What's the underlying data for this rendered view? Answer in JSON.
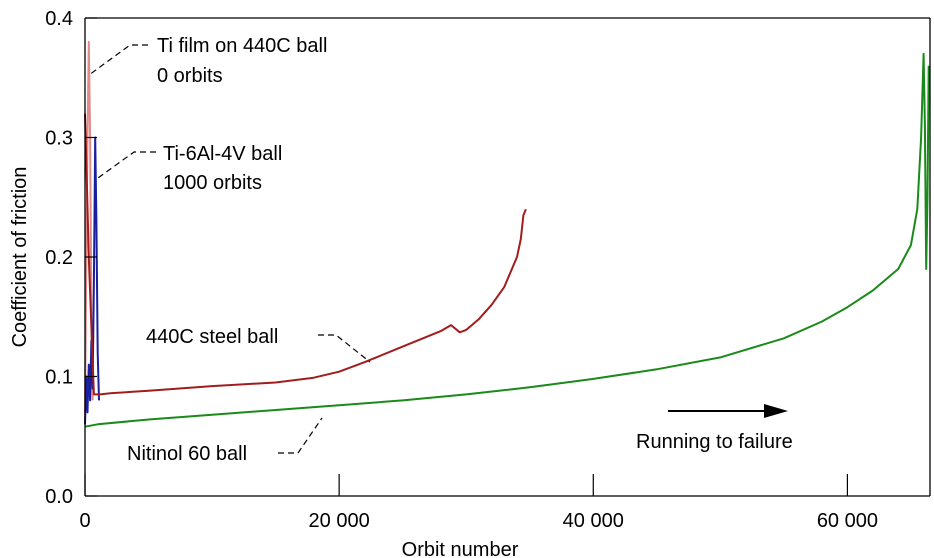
{
  "chart_data": {
    "type": "line",
    "title": "",
    "xlabel": "Orbit number",
    "ylabel": "Coefficient of friction",
    "xlim": [
      0,
      66500
    ],
    "ylim": [
      0,
      0.4
    ],
    "x_ticks": [
      {
        "value": 0,
        "label": "0"
      },
      {
        "value": 20000,
        "label": "20 000"
      },
      {
        "value": 40000,
        "label": "40 000"
      },
      {
        "value": 60000,
        "label": "60 000"
      }
    ],
    "y_ticks": [
      {
        "value": 0,
        "label": "0.0"
      },
      {
        "value": 0.1,
        "label": "0.1"
      },
      {
        "value": 0.2,
        "label": "0.2"
      },
      {
        "value": 0.3,
        "label": "0.3"
      },
      {
        "value": 0.4,
        "label": "0.4"
      }
    ],
    "grid": false,
    "legend": "none",
    "series": [
      {
        "color": "#e08a8a",
        "x": [
          0,
          100,
          200,
          300,
          400,
          500,
          600
        ],
        "y": [
          0.07,
          0.2,
          0.3,
          0.38,
          0.3,
          0.15,
          0.08
        ]
      },
      {
        "color": "#1a1f9e",
        "x": [
          0,
          100,
          200,
          300,
          400,
          500,
          600,
          700,
          800,
          900,
          1000,
          1100
        ],
        "y": [
          0.06,
          0.1,
          0.07,
          0.11,
          0.08,
          0.13,
          0.09,
          0.18,
          0.3,
          0.23,
          0.12,
          0.08
        ]
      },
      {
        "color": "#a11d1d",
        "x": [
          0,
          300,
          700,
          1200,
          2000,
          5000,
          10000,
          15000,
          18000,
          20000,
          22000,
          25000,
          28000,
          28800,
          29500,
          30000,
          31000,
          32000,
          33000,
          34000,
          34300,
          34500,
          34700
        ],
        "y": [
          0.32,
          0.2,
          0.085,
          0.085,
          0.086,
          0.088,
          0.092,
          0.095,
          0.099,
          0.104,
          0.112,
          0.125,
          0.138,
          0.143,
          0.137,
          0.139,
          0.148,
          0.16,
          0.175,
          0.2,
          0.215,
          0.235,
          0.24
        ]
      },
      {
        "color": "#1a8a1a",
        "x": [
          0,
          1000,
          5000,
          10000,
          15000,
          20000,
          25000,
          30000,
          35000,
          40000,
          45000,
          50000,
          55000,
          58000,
          60000,
          62000,
          64000,
          65000,
          65500,
          65800,
          66000,
          66100,
          66200,
          66300,
          66400
        ],
        "y": [
          0.058,
          0.06,
          0.064,
          0.068,
          0.072,
          0.076,
          0.08,
          0.085,
          0.091,
          0.098,
          0.106,
          0.116,
          0.132,
          0.146,
          0.158,
          0.172,
          0.19,
          0.21,
          0.24,
          0.3,
          0.37,
          0.31,
          0.19,
          0.25,
          0.36
        ]
      }
    ],
    "annotations": [
      {
        "lines": [
          "Ti film on 440C ball",
          "0 orbits"
        ]
      },
      {
        "lines": [
          "Ti-6Al-4V ball",
          "1000 orbits"
        ]
      },
      {
        "lines": [
          "440C steel ball"
        ]
      },
      {
        "lines": [
          "Nitinol 60 ball"
        ]
      },
      {
        "lines": [
          "Running to failure"
        ]
      }
    ]
  }
}
